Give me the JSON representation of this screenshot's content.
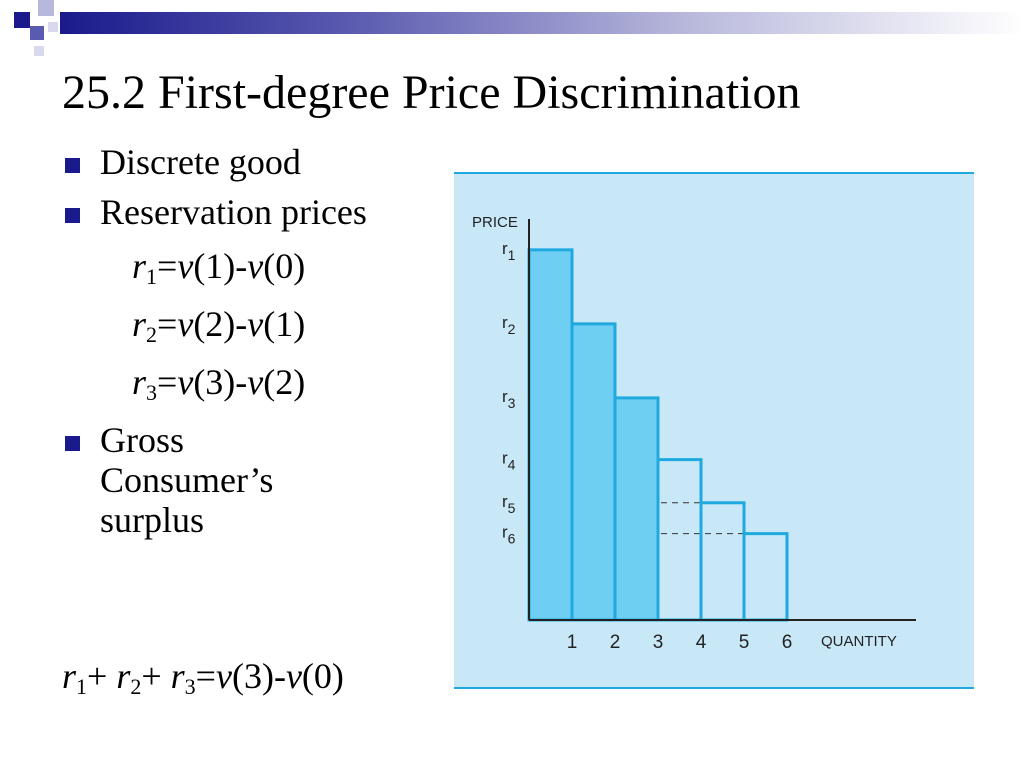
{
  "title": "25.2 First-degree Price Discrimination",
  "bullets": [
    {
      "text": "Discrete good"
    },
    {
      "text": "Reservation prices"
    },
    {
      "text": "Gross Consumer’s surplus"
    }
  ],
  "equations": [
    {
      "r": "r",
      "sub": "1",
      "rhs_a": "v",
      "arg_a": "(1)-",
      "rhs_b": "v",
      "arg_b": "(0)"
    },
    {
      "r": "r",
      "sub": "2",
      "rhs_a": "v",
      "arg_a": "(2)-",
      "rhs_b": "v",
      "arg_b": "(1)"
    },
    {
      "r": "r",
      "sub": "3",
      "rhs_a": "v",
      "arg_a": "(3)-",
      "rhs_b": "v",
      "arg_b": "(2)"
    }
  ],
  "total": {
    "t1": "r",
    "s1": "1",
    "p1": "+ ",
    "t2": "r",
    "s2": "2",
    "p2": "+ ",
    "t3": "r",
    "s3": "3",
    "eq": "=",
    "v1": "v",
    "a1": "(3)-",
    "v2": "v",
    "a2": "(0)"
  },
  "colors": {
    "accent": "#1a1a8c",
    "panel": "#c8e8f8",
    "bars_filled": "#6fcff3",
    "bar_outline": "#1fa9df"
  },
  "chart_data": {
    "type": "bar",
    "ylabel": "PRICE",
    "xlabel": "QUANTITY",
    "categories": [
      "1",
      "2",
      "3",
      "4",
      "5",
      "6"
    ],
    "price_labels": [
      {
        "base": "r",
        "sub": "1"
      },
      {
        "base": "r",
        "sub": "2"
      },
      {
        "base": "r",
        "sub": "3"
      },
      {
        "base": "r",
        "sub": "4"
      },
      {
        "base": "r",
        "sub": "5"
      },
      {
        "base": "r",
        "sub": "6"
      }
    ],
    "values": [
      6,
      4.8,
      3.6,
      2.6,
      1.9,
      1.4
    ],
    "filled_count": 3,
    "ylim": [
      0,
      6.5
    ],
    "xlim": [
      0,
      9
    ],
    "grid": false
  }
}
